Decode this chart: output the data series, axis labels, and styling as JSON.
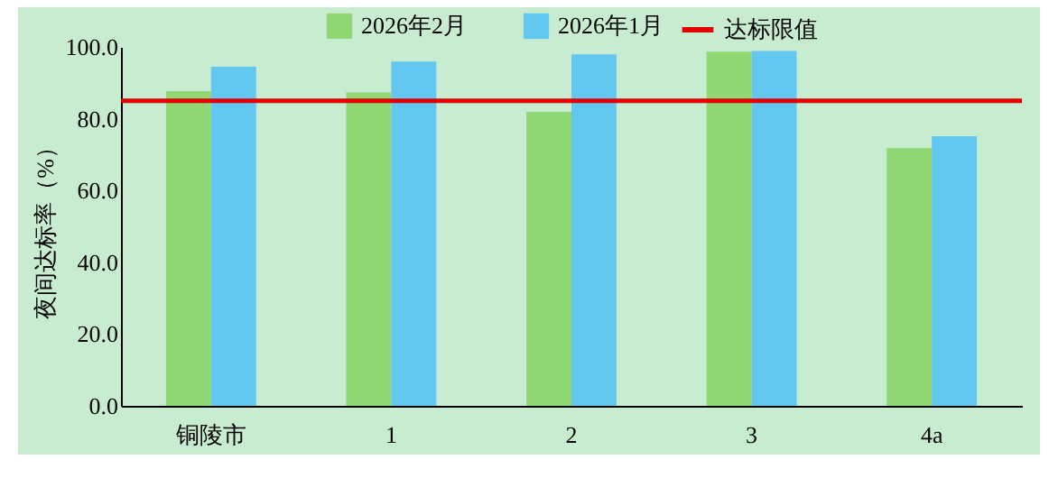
{
  "chart_data": {
    "type": "bar",
    "ylabel": "夜间达标率（%）",
    "categories": [
      "铜陵市",
      "1",
      "2",
      "3",
      "4a"
    ],
    "series": [
      {
        "name": "2026年2月",
        "color": "#8fd873",
        "values": [
          87.7,
          87.3,
          81.9,
          98.7,
          71.8
        ]
      },
      {
        "name": "2026年1月",
        "color": "#62c8f0",
        "values": [
          94.5,
          95.9,
          97.9,
          98.9,
          75.1
        ]
      }
    ],
    "ylim": [
      0,
      100
    ],
    "yticks": [
      {
        "value": 0,
        "label": "0.0"
      },
      {
        "value": 20,
        "label": "20.0"
      },
      {
        "value": 40,
        "label": "40.0"
      },
      {
        "value": 60,
        "label": "60.0"
      },
      {
        "value": 80,
        "label": "80.0"
      },
      {
        "value": 100,
        "label": "100.0"
      }
    ],
    "ref_lines": [
      {
        "axis": "y",
        "value": 85,
        "label": "达标限值",
        "color": "#e00000"
      }
    ],
    "grid": false,
    "legend": "top"
  }
}
